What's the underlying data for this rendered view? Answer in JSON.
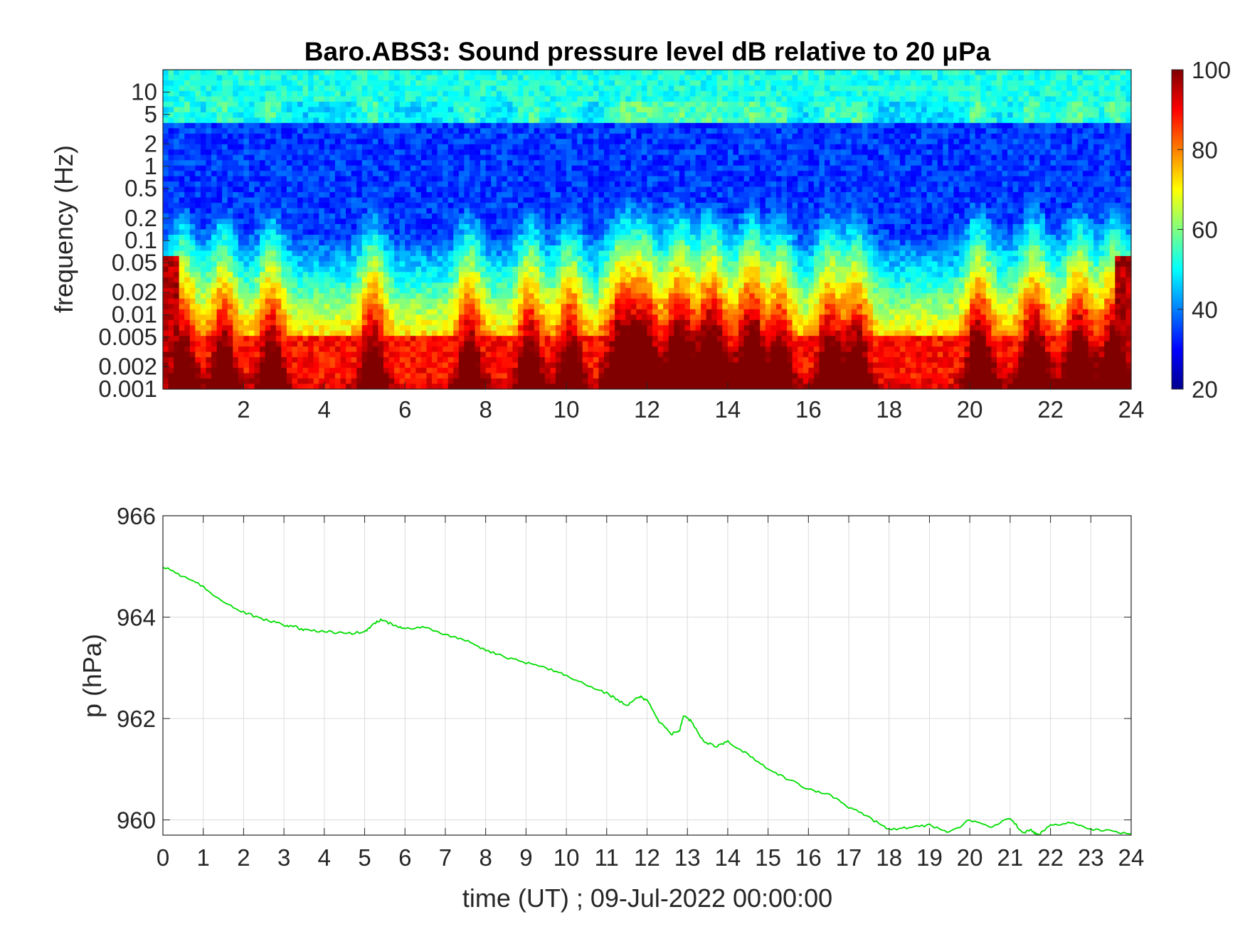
{
  "chart_data": [
    {
      "type": "heatmap",
      "title": "Baro.ABS3: Sound pressure level dB relative to 20 μPa",
      "ylabel": "frequency (Hz)",
      "xlabel": "",
      "y_scale": "log",
      "xlim": [
        0,
        24
      ],
      "ylim": [
        0.001,
        20
      ],
      "x_ticks": [
        "2",
        "4",
        "6",
        "8",
        "10",
        "12",
        "14",
        "16",
        "18",
        "20",
        "22",
        "24"
      ],
      "y_ticks": [
        "10",
        "5",
        "2",
        "1",
        "0.5",
        "0.2",
        "0.1",
        "0.05",
        "0.02",
        "0.01",
        "0.005",
        "0.002",
        "0.001"
      ],
      "colorbar": {
        "colormap": "jet",
        "range": [
          20,
          100
        ],
        "ticks": [
          "100",
          "80",
          "60",
          "40",
          "20"
        ]
      },
      "hot_spots_hours": [
        0.5,
        1.5,
        2.7,
        5.2,
        7.6,
        9.1,
        10.1,
        11.4,
        11.9,
        12.8,
        13.6,
        14.6,
        15.3,
        16.5,
        17.2,
        20.2,
        21.6,
        22.7,
        23.6
      ]
    },
    {
      "type": "line",
      "xlabel": "time (UT) ; 09-Jul-2022 00:00:00",
      "ylabel": "p (hPa)",
      "xlim": [
        0,
        24
      ],
      "ylim": [
        959.7,
        966
      ],
      "grid": true,
      "line_color": "#00dd00",
      "x_ticks": [
        "0",
        "1",
        "2",
        "3",
        "4",
        "5",
        "6",
        "7",
        "8",
        "9",
        "10",
        "11",
        "12",
        "13",
        "14",
        "15",
        "16",
        "17",
        "18",
        "19",
        "20",
        "21",
        "22",
        "23",
        "24"
      ],
      "y_ticks": [
        "966",
        "964",
        "962",
        "960"
      ],
      "series": [
        {
          "x": [
            0,
            0.5,
            1,
            1.5,
            2,
            2.5,
            3,
            3.3,
            3.5,
            4,
            4.5,
            5,
            5.2,
            5.4,
            5.7,
            6,
            6.5,
            7,
            7.5,
            8,
            8.5,
            9,
            9.5,
            10,
            10.5,
            11,
            11.3,
            11.5,
            11.8,
            12,
            12.3,
            12.6,
            12.8,
            12.9,
            13.1,
            13.4,
            13.7,
            14,
            14.5,
            15,
            15.5,
            16,
            16.5,
            17,
            17.5,
            18,
            18.5,
            19,
            19.5,
            20,
            20.5,
            21,
            21.3,
            21.5,
            21.7,
            22,
            22.5,
            23,
            23.5,
            24
          ],
          "y": [
            965.0,
            964.8,
            964.6,
            964.3,
            964.1,
            963.95,
            963.85,
            963.8,
            963.75,
            963.72,
            963.68,
            963.7,
            963.85,
            963.95,
            963.85,
            963.78,
            963.8,
            963.65,
            963.55,
            963.35,
            963.2,
            963.1,
            963.0,
            962.85,
            962.65,
            962.5,
            962.35,
            962.25,
            962.45,
            962.35,
            961.95,
            961.7,
            961.75,
            962.05,
            961.95,
            961.55,
            961.45,
            961.55,
            961.3,
            961.0,
            960.8,
            960.6,
            960.5,
            960.25,
            960.05,
            959.8,
            959.85,
            959.9,
            959.75,
            960.0,
            959.85,
            960.05,
            959.75,
            959.8,
            959.7,
            959.9,
            959.95,
            959.82,
            959.78,
            959.72
          ]
        }
      ]
    }
  ]
}
